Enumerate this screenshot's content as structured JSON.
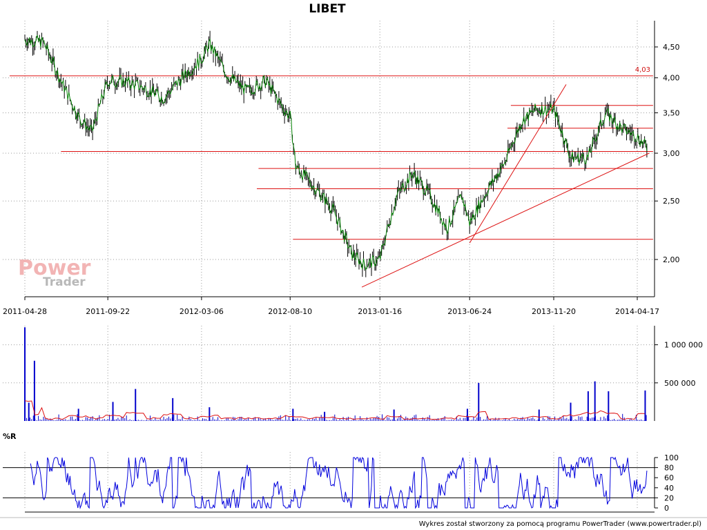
{
  "watermark": {
    "line1": "Power",
    "line2": "Trader"
  },
  "footer": "Wykres został stworzony za pomocą programu PowerTrader (www.powertrader.pl)",
  "colors": {
    "price_line": "#008000",
    "price_bars": "#000000",
    "levels": "#dd1111",
    "volume": "#0000cc",
    "volume_avg": "#dd1111",
    "wr": "#0000dd"
  },
  "chart_data": [
    {
      "type": "line",
      "title": "LIBET",
      "x_tick_labels": [
        "2011-04-28",
        "2011-09-22",
        "2012-03-06",
        "2012-08-10",
        "2013-01-16",
        "2013-06-24",
        "2013-11-20",
        "2014-04-17"
      ],
      "y_tick_labels": [
        "4,50",
        "4,00",
        "3,50",
        "3,00",
        "2,50",
        "2,00"
      ],
      "y_ticks": [
        4.5,
        4.0,
        3.5,
        3.0,
        2.5,
        2.0
      ],
      "ylim": [
        1.75,
        4.75
      ],
      "y_scale": "log",
      "grid": true,
      "series": [
        {
          "x": [
            "2011-04-28",
            "2011-05-31",
            "2011-07-01",
            "2011-08-01",
            "2011-08-25",
            "2011-09-22",
            "2011-10-20",
            "2011-11-25",
            "2011-12-30",
            "2012-02-01",
            "2012-03-06",
            "2012-03-20",
            "2012-04-20",
            "2012-05-25",
            "2012-06-28",
            "2012-07-30",
            "2012-08-10",
            "2012-08-20",
            "2012-09-20",
            "2012-10-25",
            "2012-11-26",
            "2012-12-20",
            "2013-01-16",
            "2013-02-15",
            "2013-03-15",
            "2013-04-15",
            "2013-05-15",
            "2013-06-10",
            "2013-06-24",
            "2013-07-25",
            "2013-08-26",
            "2013-09-25",
            "2013-10-21",
            "2013-11-20",
            "2013-12-20",
            "2014-01-20",
            "2014-02-20",
            "2014-03-20",
            "2014-04-17",
            "2014-05-05"
          ],
          "y": [
            4.63,
            4.58,
            3.95,
            3.45,
            3.25,
            3.95,
            3.95,
            3.85,
            3.7,
            4.0,
            4.3,
            4.55,
            4.05,
            3.8,
            3.95,
            3.55,
            3.45,
            2.85,
            2.65,
            2.42,
            2.05,
            1.96,
            2.0,
            2.55,
            2.78,
            2.55,
            2.25,
            2.55,
            2.3,
            2.6,
            2.9,
            3.4,
            3.55,
            3.55,
            2.95,
            2.95,
            3.5,
            3.3,
            3.2,
            3.05
          ]
        }
      ],
      "levels": [
        {
          "value": 4.03,
          "label": "4,03",
          "from": "2011-04-01",
          "to": "2014-05-15"
        },
        {
          "value": 3.6,
          "from": "2013-09-05",
          "to": "2014-05-15"
        },
        {
          "value": 3.3,
          "from": "2013-08-30",
          "to": "2014-05-15"
        },
        {
          "value": 3.02,
          "from": "2011-07-01",
          "to": "2014-05-15"
        },
        {
          "value": 2.83,
          "from": "2012-06-15",
          "to": "2014-05-15"
        },
        {
          "value": 2.62,
          "from": "2012-06-12",
          "to": "2014-05-15"
        },
        {
          "value": 2.16,
          "from": "2012-08-15",
          "to": "2014-05-15"
        }
      ],
      "trendlines": [
        {
          "x": [
            "2012-12-15",
            "2014-05-08"
          ],
          "y": [
            1.8,
            3.0
          ]
        },
        {
          "x": [
            "2013-06-24",
            "2013-12-12"
          ],
          "y": [
            2.13,
            3.9
          ]
        }
      ]
    },
    {
      "type": "bar",
      "y_tick_labels": [
        "1 000 000",
        "500 000"
      ],
      "y_ticks": [
        1000000,
        500000
      ],
      "ylim": [
        0,
        1250000
      ],
      "grid": true,
      "series": [
        {
          "name": "",
          "x": [
            "2011-04-28",
            "2011-05-05",
            "2011-05-15",
            "2011-08-01",
            "2011-10-01",
            "2011-11-10",
            "2012-01-15",
            "2012-03-20",
            "2012-08-15",
            "2012-10-10",
            "2013-02-10",
            "2013-06-20",
            "2013-07-10",
            "2013-10-25",
            "2013-12-20",
            "2014-01-20",
            "2014-02-01",
            "2014-02-25",
            "2014-05-01"
          ],
          "values": [
            1230000,
            240000,
            790000,
            160000,
            250000,
            420000,
            300000,
            180000,
            160000,
            120000,
            150000,
            160000,
            500000,
            150000,
            240000,
            390000,
            520000,
            390000,
            400000
          ]
        }
      ]
    },
    {
      "type": "line",
      "title": "%R",
      "y_tick_labels": [
        "100",
        "80",
        "60",
        "40",
        "20",
        "0"
      ],
      "y_ticks": [
        100,
        80,
        60,
        40,
        20,
        0
      ],
      "ylim": [
        0,
        100
      ],
      "reference_lines": [
        80,
        20
      ],
      "grid": true
    }
  ]
}
